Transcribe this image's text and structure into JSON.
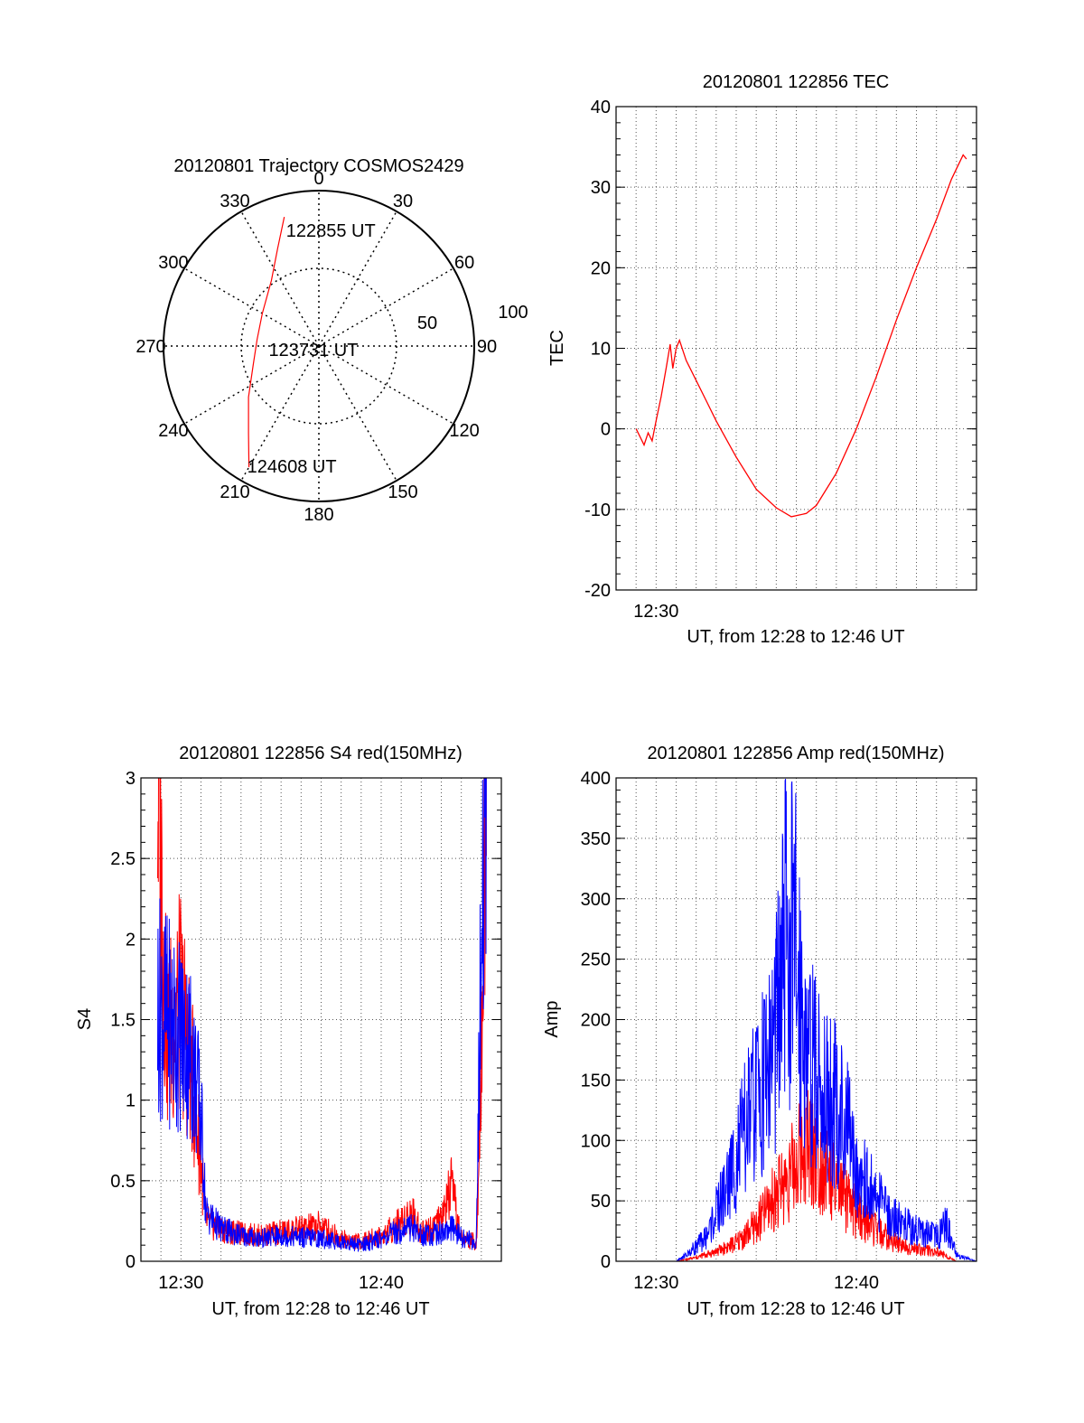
{
  "colors": {
    "red": "#ff0000",
    "blue": "#0000ff",
    "grid": "#555555",
    "axis": "#000000"
  },
  "chart_data": [
    {
      "id": "trajectory",
      "type": "polar",
      "title": "20120801 Trajectory COSMOS2429",
      "azimuth_labels": [
        "0",
        "30",
        "60",
        "90",
        "120",
        "150",
        "180",
        "210",
        "240",
        "270",
        "300",
        "330"
      ],
      "radial_labels": [
        "50",
        "100"
      ],
      "radial_range": [
        0,
        100
      ],
      "series": [
        {
          "color": "red",
          "points": [
            {
              "az": 345,
              "zen": 86
            },
            {
              "az": 337,
              "zen": 68
            },
            {
              "az": 324,
              "zen": 52
            },
            {
              "az": 300,
              "zen": 42
            },
            {
              "az": 276,
              "zen": 40
            },
            {
              "az": 254,
              "zen": 44
            },
            {
              "az": 234,
              "zen": 56
            },
            {
              "az": 219,
              "zen": 72
            },
            {
              "az": 210,
              "zen": 90
            }
          ]
        }
      ],
      "point_labels": [
        {
          "text": "122855 UT",
          "at": "start"
        },
        {
          "text": "123731 UT",
          "at": "center"
        },
        {
          "text": "124608 UT",
          "at": "end"
        }
      ]
    },
    {
      "id": "tec",
      "type": "line",
      "title": "20120801 122856 TEC",
      "ylabel": "TEC",
      "xlabel": "UT, from 12:28 to 12:46 UT",
      "xlim": [
        "12:28",
        "12:46"
      ],
      "ylim": [
        -20,
        40
      ],
      "yticks": [
        -20,
        -10,
        0,
        10,
        20,
        30,
        40
      ],
      "xtick_labels": [
        {
          "time": "12:30",
          "label": "12:30"
        }
      ],
      "grid": true,
      "series": [
        {
          "color": "red",
          "points": [
            [
              "12:29:00",
              0.0
            ],
            [
              "12:29:12",
              -1.0
            ],
            [
              "12:29:24",
              -2.0
            ],
            [
              "12:29:36",
              -0.5
            ],
            [
              "12:29:48",
              -1.5
            ],
            [
              "12:30:00",
              1.0
            ],
            [
              "12:30:15",
              4.0
            ],
            [
              "12:30:30",
              7.5
            ],
            [
              "12:30:42",
              10.5
            ],
            [
              "12:30:50",
              7.5
            ],
            [
              "12:31:00",
              10.0
            ],
            [
              "12:31:10",
              11.0
            ],
            [
              "12:31:30",
              8.5
            ],
            [
              "12:32:00",
              6.0
            ],
            [
              "12:32:30",
              3.5
            ],
            [
              "12:33:00",
              1.0
            ],
            [
              "12:34:00",
              -3.5
            ],
            [
              "12:35:00",
              -7.5
            ],
            [
              "12:36:00",
              -9.8
            ],
            [
              "12:36:45",
              -10.9
            ],
            [
              "12:37:30",
              -10.5
            ],
            [
              "12:38:00",
              -9.5
            ],
            [
              "12:39:00",
              -5.5
            ],
            [
              "12:40:00",
              0.0
            ],
            [
              "12:41:00",
              6.5
            ],
            [
              "12:42:00",
              13.5
            ],
            [
              "12:43:00",
              20.0
            ],
            [
              "12:44:00",
              26.0
            ],
            [
              "12:44:45",
              31.0
            ],
            [
              "12:45:20",
              34.0
            ],
            [
              "12:45:30",
              33.5
            ]
          ]
        }
      ]
    },
    {
      "id": "s4",
      "type": "line",
      "title": "20120801 122856 S4 red(150MHz)",
      "ylabel": "S4",
      "xlabel": "UT, from 12:28 to 12:46 UT",
      "xlim": [
        "12:28",
        "12:46"
      ],
      "ylim": [
        0,
        3
      ],
      "yticks": [
        0,
        0.5,
        1,
        1.5,
        2,
        2.5,
        3
      ],
      "xtick_labels": [
        {
          "time": "12:30",
          "label": "12:30"
        },
        {
          "time": "12:40",
          "label": "12:40"
        }
      ],
      "grid": true,
      "series": [
        {
          "color": "red",
          "points": [
            [
              "12:28:50",
              3.0
            ],
            [
              "12:29:20",
              1.4
            ],
            [
              "12:30:00",
              1.6
            ],
            [
              "12:30:30",
              1.2
            ],
            [
              "12:31:00",
              0.6
            ],
            [
              "12:31:15",
              0.25
            ],
            [
              "12:32:00",
              0.2
            ],
            [
              "12:33:00",
              0.17
            ],
            [
              "12:34:00",
              0.16
            ],
            [
              "12:35:00",
              0.18
            ],
            [
              "12:36:00",
              0.2
            ],
            [
              "12:37:00",
              0.22
            ],
            [
              "12:38:00",
              0.14
            ],
            [
              "12:39:00",
              0.12
            ],
            [
              "12:40:00",
              0.16
            ],
            [
              "12:40:45",
              0.22
            ],
            [
              "12:41:30",
              0.3
            ],
            [
              "12:42:00",
              0.18
            ],
            [
              "12:43:00",
              0.25
            ],
            [
              "12:43:30",
              0.45
            ],
            [
              "12:44:00",
              0.14
            ],
            [
              "12:44:45",
              0.12
            ],
            [
              "12:45:00",
              1.3
            ],
            [
              "12:45:15",
              3.0
            ]
          ]
        },
        {
          "color": "blue",
          "points": [
            [
              "12:28:50",
              1.6
            ],
            [
              "12:29:20",
              1.5
            ],
            [
              "12:30:00",
              1.4
            ],
            [
              "12:30:30",
              1.3
            ],
            [
              "12:31:00",
              0.9
            ],
            [
              "12:31:15",
              0.3
            ],
            [
              "12:32:00",
              0.2
            ],
            [
              "12:33:00",
              0.16
            ],
            [
              "12:34:00",
              0.14
            ],
            [
              "12:35:00",
              0.16
            ],
            [
              "12:36:00",
              0.15
            ],
            [
              "12:37:00",
              0.14
            ],
            [
              "12:38:00",
              0.12
            ],
            [
              "12:39:00",
              0.1
            ],
            [
              "12:40:00",
              0.14
            ],
            [
              "12:40:45",
              0.18
            ],
            [
              "12:41:30",
              0.22
            ],
            [
              "12:42:00",
              0.16
            ],
            [
              "12:43:00",
              0.18
            ],
            [
              "12:43:30",
              0.2
            ],
            [
              "12:44:00",
              0.15
            ],
            [
              "12:44:45",
              0.12
            ],
            [
              "12:45:00",
              2.0
            ],
            [
              "12:45:15",
              3.0
            ]
          ]
        }
      ]
    },
    {
      "id": "amp",
      "type": "line",
      "title": "20120801 122856 Amp red(150MHz)",
      "ylabel": "Amp",
      "xlabel": "UT, from 12:28 to 12:46 UT",
      "xlim": [
        "12:28",
        "12:46"
      ],
      "ylim": [
        0,
        400
      ],
      "yticks": [
        0,
        50,
        100,
        150,
        200,
        250,
        300,
        350,
        400
      ],
      "xtick_labels": [
        {
          "time": "12:30",
          "label": "12:30"
        },
        {
          "time": "12:40",
          "label": "12:40"
        }
      ],
      "grid": true,
      "series": [
        {
          "color": "red",
          "points": [
            [
              "12:29:00",
              0
            ],
            [
              "12:31:00",
              0
            ],
            [
              "12:32:00",
              3
            ],
            [
              "12:33:00",
              8
            ],
            [
              "12:34:00",
              15
            ],
            [
              "12:35:00",
              30
            ],
            [
              "12:36:00",
              55
            ],
            [
              "12:37:00",
              80
            ],
            [
              "12:37:30",
              100
            ],
            [
              "12:38:00",
              90
            ],
            [
              "12:38:30",
              75
            ],
            [
              "12:39:00",
              60
            ],
            [
              "12:40:00",
              40
            ],
            [
              "12:41:00",
              25
            ],
            [
              "12:42:00",
              15
            ],
            [
              "12:43:00",
              10
            ],
            [
              "12:44:00",
              8
            ],
            [
              "12:45:00",
              0
            ],
            [
              "12:46:00",
              0
            ]
          ]
        },
        {
          "color": "blue",
          "points": [
            [
              "12:29:00",
              0
            ],
            [
              "12:31:00",
              0
            ],
            [
              "12:31:30",
              5
            ],
            [
              "12:32:30",
              20
            ],
            [
              "12:33:30",
              60
            ],
            [
              "12:34:30",
              110
            ],
            [
              "12:35:30",
              160
            ],
            [
              "12:36:00",
              190
            ],
            [
              "12:36:30",
              270
            ],
            [
              "12:37:00",
              250
            ],
            [
              "12:37:30",
              180
            ],
            [
              "12:38:00",
              150
            ],
            [
              "12:38:30",
              140
            ],
            [
              "12:39:00",
              130
            ],
            [
              "12:39:30",
              110
            ],
            [
              "12:40:00",
              80
            ],
            [
              "12:41:00",
              50
            ],
            [
              "12:42:00",
              35
            ],
            [
              "12:43:00",
              25
            ],
            [
              "12:44:00",
              20
            ],
            [
              "12:44:30",
              30
            ],
            [
              "12:45:00",
              5
            ],
            [
              "12:46:00",
              0
            ]
          ]
        }
      ]
    }
  ]
}
